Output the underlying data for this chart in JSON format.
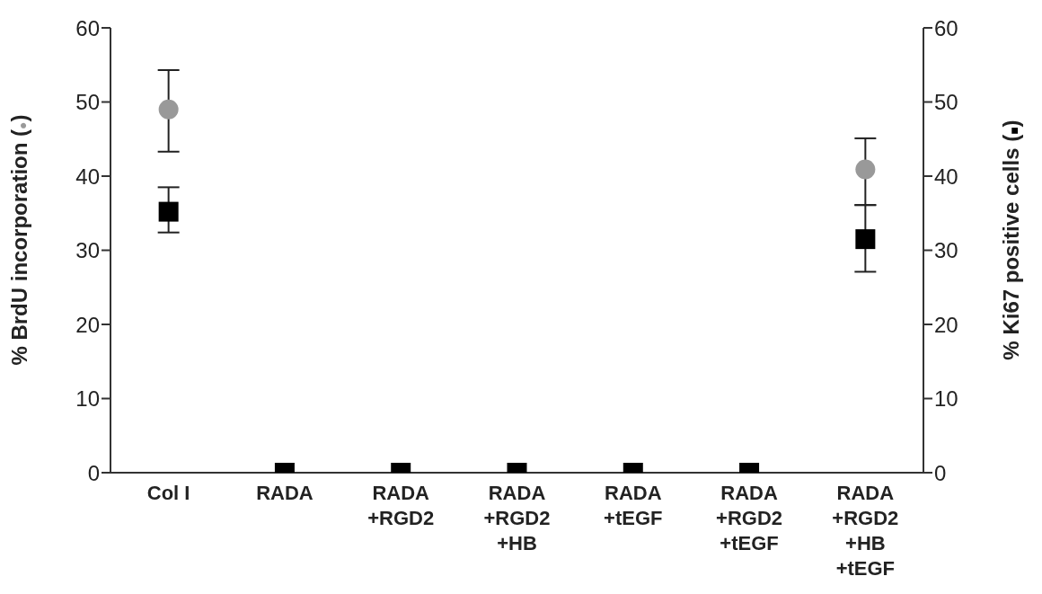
{
  "chart_data": {
    "type": "scatter",
    "categories": [
      "Col I",
      "RADA",
      "RADA +RGD2",
      "RADA +RGD2 +HB",
      "RADA +tEGF",
      "RADA +RGD2 +tEGF",
      "RADA +RGD2 +HB +tEGF"
    ],
    "ylabel": "% BrdU incorporation (●)",
    "y2label": "% Ki67 positive cells (■)",
    "ylim": [
      0,
      60
    ],
    "yticks": [
      0,
      10,
      20,
      30,
      40,
      50,
      60
    ],
    "y2lim": [
      0,
      60
    ],
    "y2ticks": [
      0,
      10,
      20,
      30,
      40,
      50,
      60
    ],
    "series": [
      {
        "name": null,
        "marker": "circle",
        "color": "#999999",
        "values": [
          49.0,
          null,
          null,
          null,
          null,
          null,
          40.9
        ],
        "errors": [
          [
            43.3,
            54.3
          ],
          null,
          null,
          null,
          null,
          null,
          [
            36.1,
            45.1
          ]
        ]
      },
      {
        "name": null,
        "marker": "square",
        "axis": "y2",
        "color": "#000000",
        "values": [
          35.2,
          0,
          0,
          0,
          0,
          0,
          31.5
        ],
        "errors": [
          [
            32.4,
            38.5
          ],
          null,
          null,
          null,
          null,
          null,
          [
            27.1,
            36.1
          ]
        ]
      }
    ]
  }
}
